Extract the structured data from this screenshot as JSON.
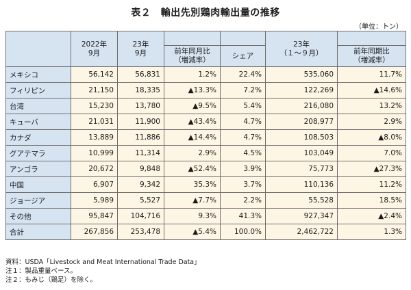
{
  "title": "表２　輸出先別鶏肉輸出量の推移",
  "unit": "（単位：トン）",
  "headers": {
    "col_2022_sep_line1": "2022年",
    "col_2022_sep_line2": "9月",
    "col_2023_sep_line1": "23年",
    "col_2023_sep_line2": "9月",
    "col_yoy_month_line1": "前年同月比",
    "col_yoy_month_line2": "（増減率）",
    "col_share": "シェア",
    "col_2023_ytd_line1": "23年",
    "col_2023_ytd_line2": "（１～９月）",
    "col_yoy_period_line1": "前年同期比",
    "col_yoy_period_line2": "（増減率）"
  },
  "rows": [
    {
      "country": "メキシコ",
      "v2022_09": "56,142",
      "v2023_09": "56,831",
      "yoy_month": "1.2%",
      "share": "22.4%",
      "v2023_ytd": "535,060",
      "yoy_period": "11.7%"
    },
    {
      "country": "フィリピン",
      "v2022_09": "21,150",
      "v2023_09": "18,335",
      "yoy_month": "▲13.3%",
      "share": "7.2%",
      "v2023_ytd": "122,269",
      "yoy_period": "▲14.6%"
    },
    {
      "country": "台湾",
      "v2022_09": "15,230",
      "v2023_09": "13,780",
      "yoy_month": "▲9.5%",
      "share": "5.4%",
      "v2023_ytd": "216,080",
      "yoy_period": "13.2%"
    },
    {
      "country": "キューバ",
      "v2022_09": "21,031",
      "v2023_09": "11,900",
      "yoy_month": "▲43.4%",
      "share": "4.7%",
      "v2023_ytd": "208,977",
      "yoy_period": "2.9%"
    },
    {
      "country": "カナダ",
      "v2022_09": "13,889",
      "v2023_09": "11,886",
      "yoy_month": "▲14.4%",
      "share": "4.7%",
      "v2023_ytd": "108,503",
      "yoy_period": "▲8.0%"
    },
    {
      "country": "グアテマラ",
      "v2022_09": "10,999",
      "v2023_09": "11,314",
      "yoy_month": "2.9%",
      "share": "4.5%",
      "v2023_ytd": "103,049",
      "yoy_period": "7.0%"
    },
    {
      "country": "アンゴラ",
      "v2022_09": "20,672",
      "v2023_09": "9,848",
      "yoy_month": "▲52.4%",
      "share": "3.9%",
      "v2023_ytd": "75,773",
      "yoy_period": "▲27.3%"
    },
    {
      "country": "中国",
      "v2022_09": "6,907",
      "v2023_09": "9,342",
      "yoy_month": "35.3%",
      "share": "3.7%",
      "v2023_ytd": "110,136",
      "yoy_period": "11.2%"
    },
    {
      "country": "ジョージア",
      "v2022_09": "5,989",
      "v2023_09": "5,527",
      "yoy_month": "▲7.7%",
      "share": "2.2%",
      "v2023_ytd": "55,528",
      "yoy_period": "18.5%"
    },
    {
      "country": "その他",
      "v2022_09": "95,847",
      "v2023_09": "104,716",
      "yoy_month": "9.3%",
      "share": "41.3%",
      "v2023_ytd": "927,347",
      "yoy_period": "▲2.4%"
    },
    {
      "country": "合計",
      "v2022_09": "267,856",
      "v2023_09": "253,478",
      "yoy_month": "▲5.4%",
      "share": "100.0%",
      "v2023_ytd": "2,462,722",
      "yoy_period": "1.3%"
    }
  ],
  "notes": [
    "資料：USDA「Livestock and Meat International Trade Data」",
    "注１：製品重量ベース。",
    "注２：もみじ（鶏足）を除く。"
  ]
}
